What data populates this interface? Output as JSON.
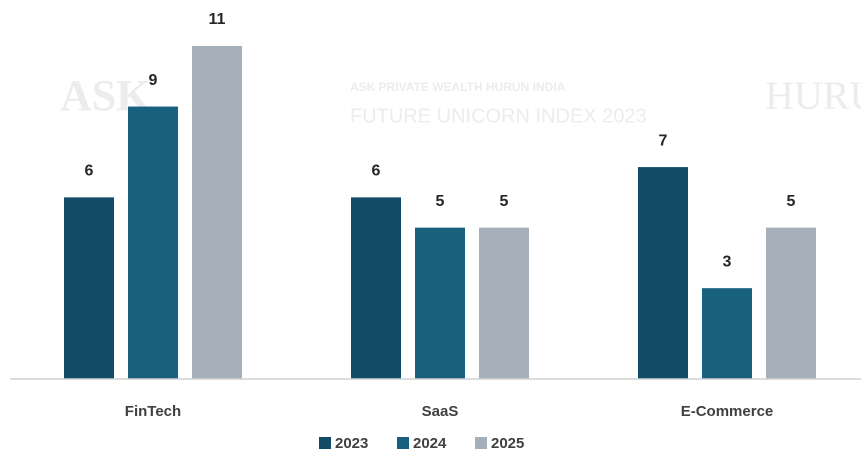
{
  "chart_data": {
    "type": "bar",
    "categories": [
      "FinTech",
      "SaaS",
      "E-Commerce"
    ],
    "series": [
      {
        "name": "2023",
        "color": "#134c67",
        "values": [
          6,
          6,
          7
        ]
      },
      {
        "name": "2024",
        "color": "#17617f",
        "values": [
          9,
          5,
          3
        ]
      },
      {
        "name": "2025",
        "color": "#a4afb9",
        "values": [
          11,
          5,
          5
        ]
      }
    ],
    "ylim": [
      0,
      11
    ],
    "watermark": [
      "ASK",
      "ASK PRIVATE WEALTH HURUN INDIA",
      "FUTURE UNICORN INDEX 2023",
      "HURUN"
    ],
    "legend": "bottom"
  }
}
